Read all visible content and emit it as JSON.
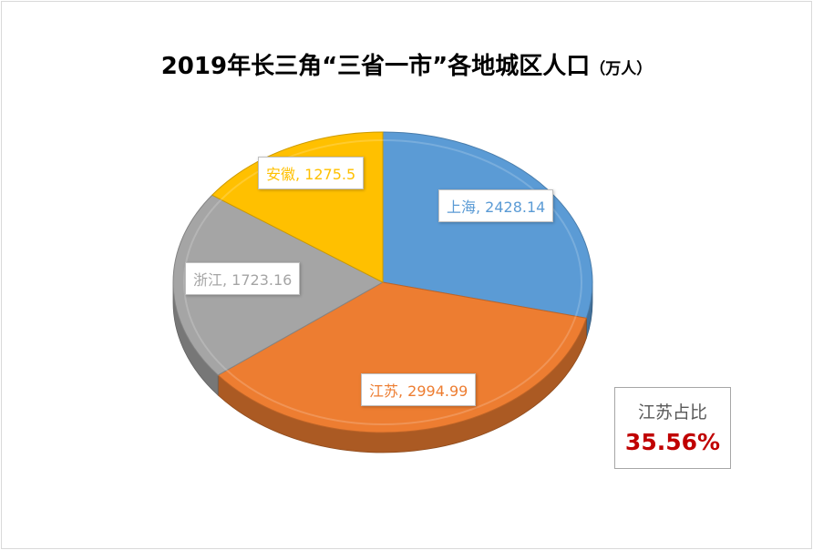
{
  "chart_data": {
    "type": "pie",
    "title": "2019年长三角“三省一市”各地城区人口",
    "title_unit": "（万人）",
    "style": "3d",
    "categories": [
      "上海",
      "江苏",
      "浙江",
      "安徽"
    ],
    "values": [
      2428.14,
      2994.99,
      1723.16,
      1275.5
    ],
    "colors": [
      "#5b9bd5",
      "#ed7d31",
      "#a5a5a5",
      "#ffc000"
    ],
    "labels": [
      "上海, 2428.14",
      "江苏, 2994.99",
      "浙江, 1723.16",
      "安徽, 1275.5"
    ],
    "label_colors": [
      "#5b9bd5",
      "#ed7d31",
      "#a5a5a5",
      "#ffc000"
    ],
    "legend": "none"
  },
  "annotation": {
    "label": "江苏占比",
    "value": "35.56%",
    "value_color": "#c00000"
  }
}
